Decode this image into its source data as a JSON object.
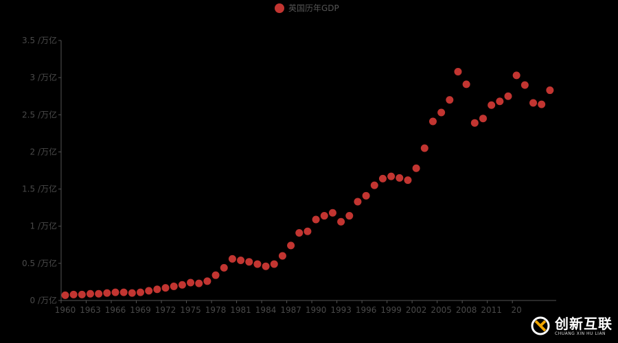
{
  "legend": {
    "label": "英国历年GDP",
    "color": "#c23531"
  },
  "watermark": {
    "cn": "创新互联",
    "en": "CHUANG XIN HU LIAN"
  },
  "colors": {
    "background": "#000000",
    "point": "#c23531",
    "axis": "#555555",
    "label": "#4a4a4a"
  },
  "chart_data": {
    "type": "scatter",
    "title": "",
    "legend": [
      "英国历年GDP"
    ],
    "xlabel": "",
    "ylabel": "",
    "ylim": [
      0,
      3.5
    ],
    "y_ticks": [
      "0 /万亿",
      "0.5 /万亿",
      "1 /万亿",
      "1.5 /万亿",
      "2 /万亿",
      "2.5 /万亿",
      "3 /万亿",
      "3.5 /万亿"
    ],
    "x_tick_labels": [
      "1960",
      "1963",
      "1966",
      "1969",
      "1972",
      "1975",
      "1978",
      "1981",
      "1984",
      "1987",
      "1990",
      "1993",
      "1996",
      "1999",
      "2002",
      "2005",
      "2008",
      "2011",
      "20"
    ],
    "grid": false,
    "x": [
      1960,
      1961,
      1962,
      1963,
      1964,
      1965,
      1966,
      1967,
      1968,
      1969,
      1970,
      1971,
      1972,
      1973,
      1974,
      1975,
      1976,
      1977,
      1978,
      1979,
      1980,
      1981,
      1982,
      1983,
      1984,
      1985,
      1986,
      1987,
      1988,
      1989,
      1990,
      1991,
      1992,
      1993,
      1994,
      1995,
      1996,
      1997,
      1998,
      1999,
      2000,
      2001,
      2002,
      2003,
      2004,
      2005,
      2006,
      2007,
      2008,
      2009,
      2010,
      2011,
      2012,
      2013,
      2014,
      2015,
      2016,
      2017,
      2018
    ],
    "series": [
      {
        "name": "英国历年GDP",
        "values": [
          0.07,
          0.08,
          0.08,
          0.09,
          0.09,
          0.1,
          0.11,
          0.11,
          0.1,
          0.11,
          0.13,
          0.15,
          0.17,
          0.19,
          0.21,
          0.24,
          0.23,
          0.26,
          0.34,
          0.44,
          0.56,
          0.54,
          0.52,
          0.49,
          0.46,
          0.49,
          0.6,
          0.74,
          0.91,
          0.93,
          1.09,
          1.14,
          1.18,
          1.06,
          1.14,
          1.33,
          1.41,
          1.55,
          1.64,
          1.67,
          1.65,
          1.62,
          1.78,
          2.05,
          2.41,
          2.53,
          2.7,
          3.08,
          2.91,
          2.39,
          2.45,
          2.63,
          2.68,
          2.75,
          3.03,
          2.9,
          2.66,
          2.64,
          2.83
        ]
      }
    ]
  }
}
